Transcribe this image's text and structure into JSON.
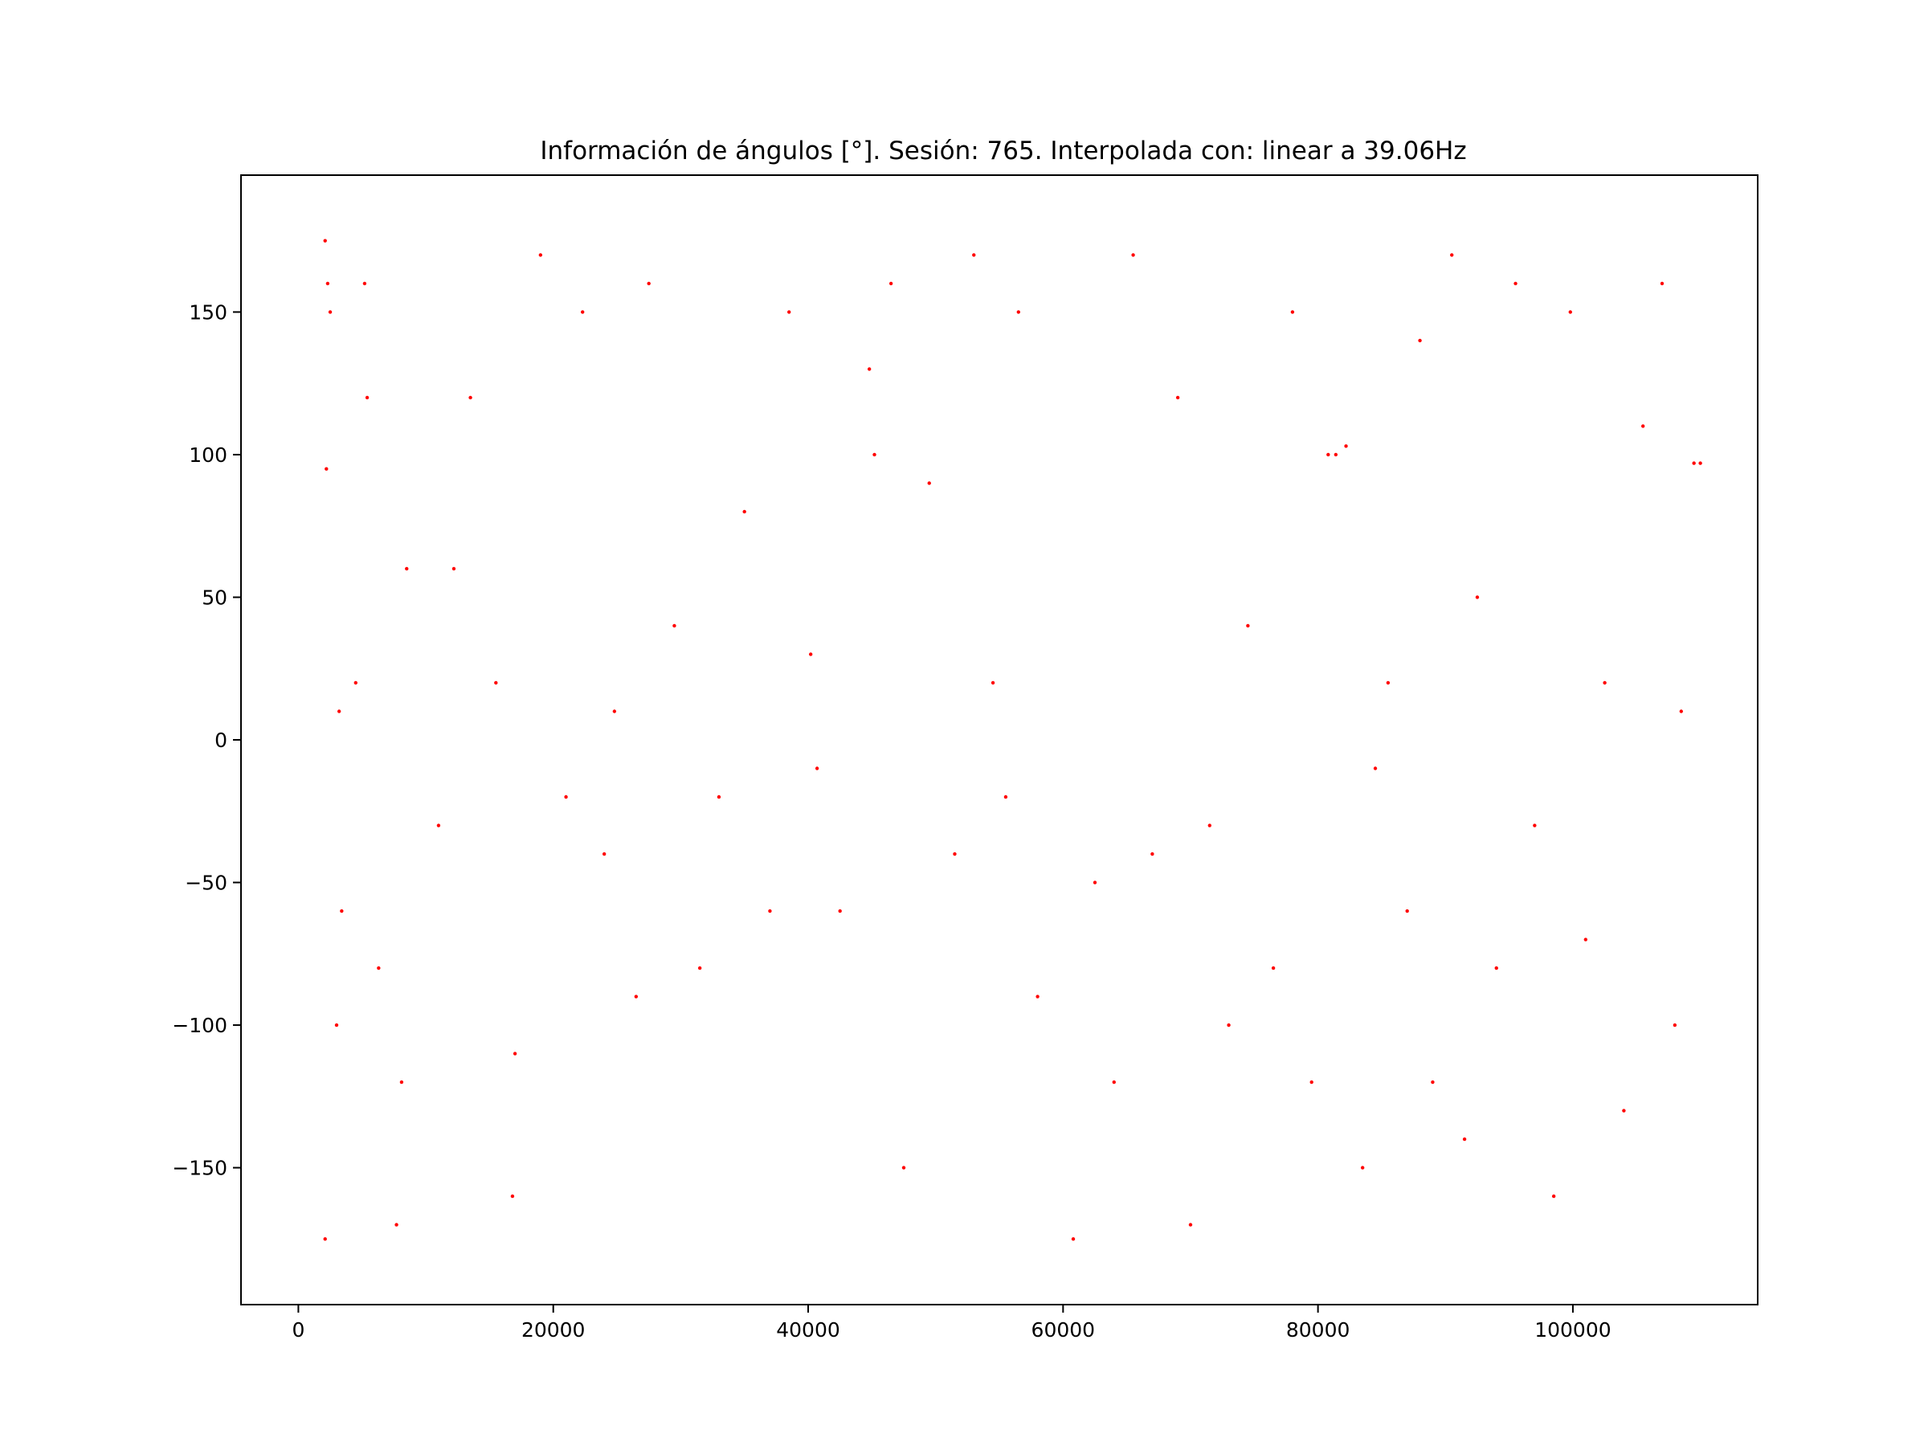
{
  "chart_data": {
    "type": "scatter",
    "title": "Información de ángulos [°]. Sesión: 765. Interpolada con: linear a 39.06Hz",
    "xlabel": "",
    "ylabel": "",
    "xlim": [
      -4500,
      114500
    ],
    "ylim": [
      -198,
      198
    ],
    "x_ticks": [
      0,
      20000,
      40000,
      60000,
      80000,
      100000
    ],
    "x_tick_labels": [
      "0",
      "20000",
      "40000",
      "60000",
      "80000",
      "100000"
    ],
    "y_ticks": [
      150,
      100,
      50,
      0,
      -50,
      -100,
      -150
    ],
    "y_tick_labels": [
      "150",
      "100",
      "50",
      "0",
      "−50",
      "−100",
      "−150"
    ],
    "grid": false,
    "marker": "point",
    "series": [
      {
        "color": "#ff0000",
        "x_range": [
          2000,
          110000
        ],
        "y_range": [
          -180,
          180
        ],
        "points": [
          [
            2100,
            175
          ],
          [
            2100,
            -175
          ],
          [
            2200,
            95
          ],
          [
            2300,
            160
          ],
          [
            2500,
            150
          ],
          [
            3000,
            -100
          ],
          [
            3200,
            10
          ],
          [
            3400,
            -60
          ],
          [
            4500,
            20
          ],
          [
            5200,
            160
          ],
          [
            5400,
            120
          ],
          [
            6300,
            -80
          ],
          [
            7700,
            -170
          ],
          [
            8100,
            -120
          ],
          [
            8500,
            60
          ],
          [
            11000,
            -30
          ],
          [
            12200,
            60
          ],
          [
            13500,
            120
          ],
          [
            15500,
            20
          ],
          [
            16800,
            -160
          ],
          [
            17000,
            -110
          ],
          [
            19000,
            170
          ],
          [
            21000,
            -20
          ],
          [
            22300,
            150
          ],
          [
            24000,
            -40
          ],
          [
            24800,
            10
          ],
          [
            26500,
            -90
          ],
          [
            27500,
            160
          ],
          [
            29500,
            40
          ],
          [
            31500,
            -80
          ],
          [
            33000,
            -20
          ],
          [
            35000,
            80
          ],
          [
            37000,
            -60
          ],
          [
            38500,
            150
          ],
          [
            40200,
            30
          ],
          [
            40700,
            -10
          ],
          [
            42500,
            -60
          ],
          [
            44800,
            130
          ],
          [
            45200,
            100
          ],
          [
            46500,
            160
          ],
          [
            47500,
            -150
          ],
          [
            49500,
            90
          ],
          [
            51500,
            -40
          ],
          [
            53000,
            170
          ],
          [
            54500,
            20
          ],
          [
            55500,
            -20
          ],
          [
            56500,
            150
          ],
          [
            58000,
            -90
          ],
          [
            60800,
            -175
          ],
          [
            62500,
            -50
          ],
          [
            64000,
            -120
          ],
          [
            65500,
            170
          ],
          [
            67000,
            -40
          ],
          [
            69000,
            120
          ],
          [
            70000,
            -170
          ],
          [
            71500,
            -30
          ],
          [
            73000,
            -100
          ],
          [
            74500,
            40
          ],
          [
            76500,
            -80
          ],
          [
            78000,
            150
          ],
          [
            79500,
            -120
          ],
          [
            80800,
            100
          ],
          [
            81400,
            100
          ],
          [
            82200,
            103
          ],
          [
            83500,
            -150
          ],
          [
            84500,
            -10
          ],
          [
            85500,
            20
          ],
          [
            87000,
            -60
          ],
          [
            88000,
            140
          ],
          [
            89000,
            -120
          ],
          [
            90500,
            170
          ],
          [
            91500,
            -140
          ],
          [
            92500,
            50
          ],
          [
            94000,
            -80
          ],
          [
            95500,
            160
          ],
          [
            97000,
            -30
          ],
          [
            98500,
            -160
          ],
          [
            99800,
            150
          ],
          [
            101000,
            -70
          ],
          [
            102500,
            20
          ],
          [
            104000,
            -130
          ],
          [
            105500,
            110
          ],
          [
            107000,
            160
          ],
          [
            108000,
            -100
          ],
          [
            108500,
            10
          ],
          [
            109500,
            97
          ],
          [
            110000,
            97
          ]
        ]
      }
    ]
  }
}
